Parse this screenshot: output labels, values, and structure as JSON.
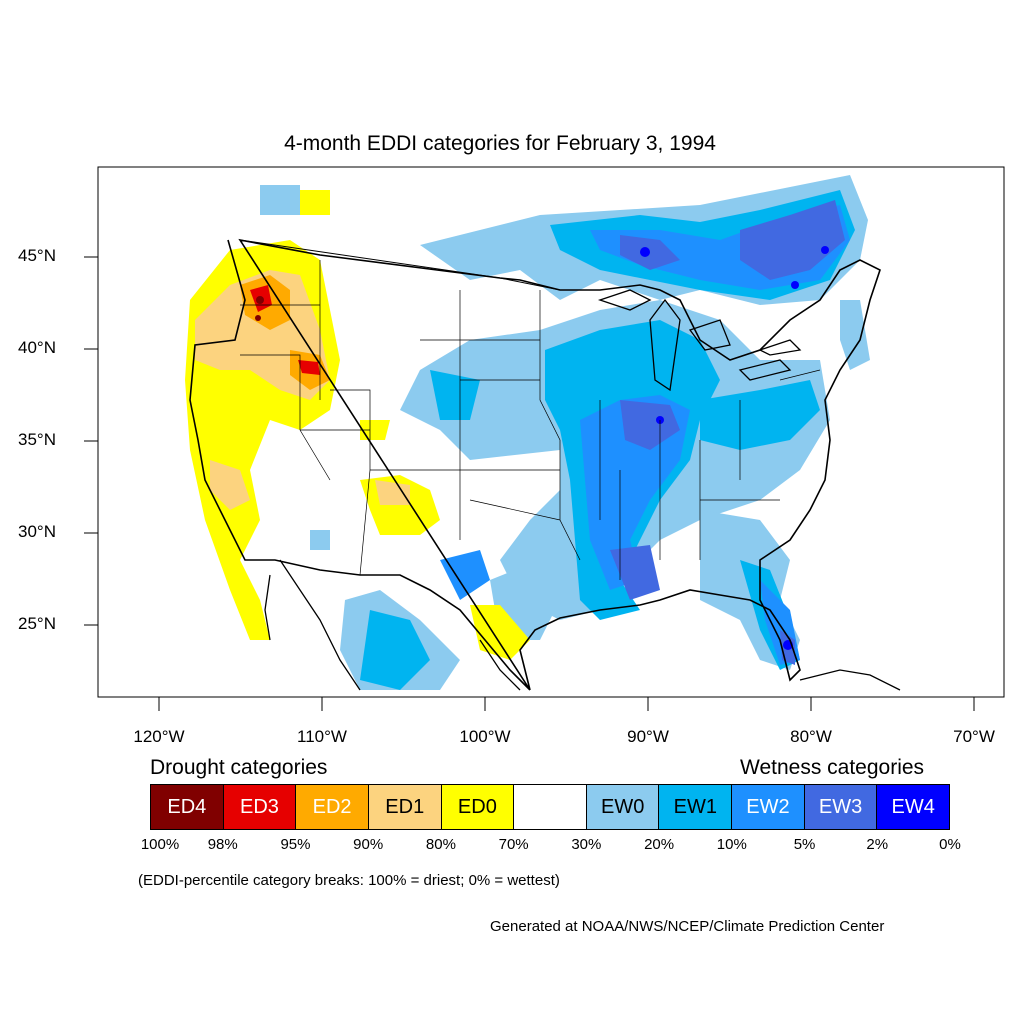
{
  "title": "4-month EDDI categories for February 3, 1994",
  "axes": {
    "lat_labels": [
      "45°N",
      "40°N",
      "35°N",
      "30°N",
      "25°N"
    ],
    "lon_labels": [
      "120°W",
      "110°W",
      "100°W",
      "90°W",
      "80°W",
      "70°W"
    ]
  },
  "legend": {
    "drought_heading": "Drought categories",
    "wetness_heading": "Wetness categories",
    "categories": [
      {
        "label": "ED4",
        "color": "#800000",
        "text_color": "#ffffff"
      },
      {
        "label": "ED3",
        "color": "#e60000",
        "text_color": "#ffffff"
      },
      {
        "label": "ED2",
        "color": "#ffaa00",
        "text_color": "#ffffff"
      },
      {
        "label": "ED1",
        "color": "#fcd37f",
        "text_color": "#000000"
      },
      {
        "label": "ED0",
        "color": "#ffff00",
        "text_color": "#000000"
      },
      {
        "label": "",
        "color": "#ffffff",
        "text_color": "#000000"
      },
      {
        "label": "EW0",
        "color": "#8ccbef",
        "text_color": "#000000"
      },
      {
        "label": "EW1",
        "color": "#00b4f0",
        "text_color": "#000000"
      },
      {
        "label": "EW2",
        "color": "#1e90ff",
        "text_color": "#ffffff"
      },
      {
        "label": "EW3",
        "color": "#4169e1",
        "text_color": "#ffffff"
      },
      {
        "label": "EW4",
        "color": "#0000ff",
        "text_color": "#ffffff"
      }
    ],
    "breaks": [
      "100%",
      "98%",
      "95%",
      "90%",
      "80%",
      "70%",
      "30%",
      "20%",
      "10%",
      "5%",
      "2%",
      "0%"
    ]
  },
  "note": "(EDDI-percentile category breaks: 100% = driest; 0% = wettest)",
  "credit": "Generated at NOAA/NWS/NCEP/Climate Prediction Center"
}
